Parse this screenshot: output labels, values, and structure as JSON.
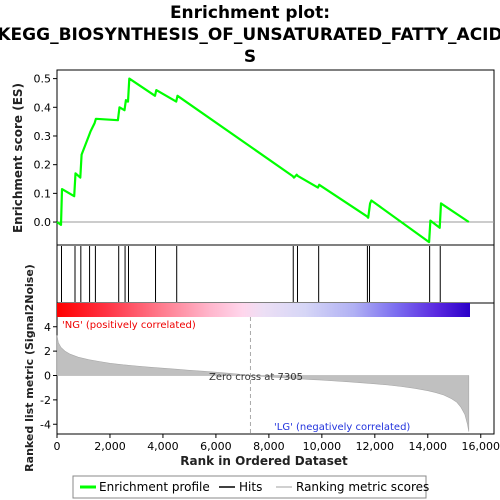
{
  "chart_data": {
    "type": "line",
    "title_lines": [
      "Enrichment plot:",
      "KEGG_BIOSYNTHESIS_OF_UNSATURATED_FATTY_ACID",
      "S"
    ],
    "top_panel": {
      "ylabel": "Enrichment score (ES)",
      "ylim": [
        -0.08,
        0.53
      ],
      "yticks": [
        0.0,
        0.1,
        0.2,
        0.3,
        0.4,
        0.5
      ],
      "ytick_labels": [
        "0.0",
        "0.1",
        "0.2",
        "0.3",
        "0.4",
        "0.5"
      ],
      "series": [
        {
          "name": "Enrichment profile",
          "color": "#00ff00",
          "x": [
            0,
            150,
            190,
            650,
            700,
            880,
            930,
            1200,
            1260,
            1420,
            1470,
            2300,
            2360,
            2550,
            2600,
            2680,
            2730,
            3700,
            3750,
            4500,
            4550,
            8900,
            8950,
            9050,
            9100,
            9850,
            9900,
            11700,
            11750,
            11820,
            11870,
            14050,
            14100,
            14450,
            14500,
            15550
          ],
          "y": [
            0.0,
            -0.01,
            0.115,
            0.09,
            0.17,
            0.155,
            0.235,
            0.3,
            0.315,
            0.345,
            0.36,
            0.355,
            0.4,
            0.39,
            0.425,
            0.42,
            0.5,
            0.44,
            0.46,
            0.42,
            0.44,
            0.16,
            0.155,
            0.165,
            0.16,
            0.12,
            0.13,
            0.02,
            0.015,
            0.065,
            0.075,
            -0.07,
            0.005,
            -0.02,
            0.065,
            0.0
          ]
        }
      ]
    },
    "hits": {
      "name": "Hits",
      "x": [
        170,
        680,
        900,
        1230,
        1450,
        2330,
        2570,
        2700,
        3720,
        4520,
        8920,
        9080,
        9880,
        11720,
        11800,
        14070,
        14470
      ]
    },
    "color_bar": {
      "positive_color": "#ff0000",
      "negative_color": "#0000ff"
    },
    "bottom_panel": {
      "ylabel": "Ranked list metric (Signal2Noise)",
      "xlabel": "Rank in Ordered Dataset",
      "ylim": [
        -4.8,
        4.8
      ],
      "yticks": [
        -4,
        -2,
        0,
        2,
        4
      ],
      "ytick_labels": [
        "-4",
        "-2",
        "0",
        "2",
        "4"
      ],
      "xlim": [
        0,
        16500
      ],
      "xticks": [
        0,
        2000,
        4000,
        6000,
        8000,
        10000,
        12000,
        14000,
        16000
      ],
      "xtick_labels": [
        "0",
        "2,000",
        "4,000",
        "6,000",
        "8,000",
        "10,000",
        "12,000",
        "14,000",
        "16,000"
      ],
      "series": [
        {
          "name": "Ranking metric scores",
          "color": "#c0c0c0",
          "x": [
            0,
            50,
            150,
            300,
            500,
            800,
            1200,
            1600,
            2000,
            2500,
            3000,
            3500,
            4000,
            4500,
            5000,
            5500,
            6000,
            6500,
            7000,
            7305,
            7800,
            8500,
            9000,
            9500,
            10000,
            10500,
            11000,
            11500,
            12000,
            12500,
            13000,
            13500,
            14000,
            14300,
            14600,
            14900,
            15100,
            15250,
            15400,
            15500,
            15550
          ],
          "y": [
            3.3,
            2.7,
            2.3,
            2.0,
            1.75,
            1.5,
            1.3,
            1.15,
            1.0,
            0.88,
            0.78,
            0.68,
            0.6,
            0.52,
            0.43,
            0.35,
            0.27,
            0.18,
            0.08,
            0.0,
            -0.08,
            -0.18,
            -0.25,
            -0.32,
            -0.38,
            -0.45,
            -0.52,
            -0.6,
            -0.68,
            -0.78,
            -0.9,
            -1.05,
            -1.25,
            -1.4,
            -1.6,
            -1.9,
            -2.2,
            -2.6,
            -3.2,
            -4.0,
            -4.6
          ]
        }
      ],
      "zero_cross_label": "Zero cross at 7305",
      "zero_cross_x": 7305,
      "pos_label": "'NG' (positively correlated)",
      "neg_label": "'LG' (negatively correlated)"
    },
    "legend": {
      "placement": "bottom",
      "items": [
        {
          "label": "Enrichment profile",
          "color": "#00ff00"
        },
        {
          "label": "Hits",
          "color": "#000000"
        },
        {
          "label": "Ranking metric scores",
          "color": "#c0c0c0"
        }
      ]
    }
  }
}
